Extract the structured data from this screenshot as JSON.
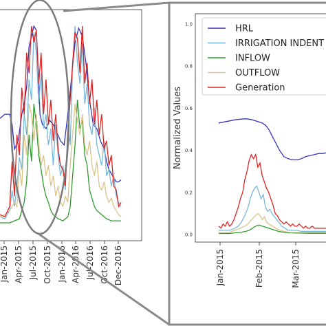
{
  "chart_data": [
    {
      "type": "line",
      "panel": "overview",
      "x_ticks": [
        "Jan-2015",
        "Apr-2015",
        "Jul-2015",
        "Oct-2015",
        "Jan-2016",
        "Apr-2016",
        "Jul-2016",
        "Oct-2016",
        "Dec-2016"
      ],
      "ylim": [
        0,
        1
      ],
      "grid": false,
      "legend": "none",
      "series": [
        {
          "name": "HRL",
          "color": "#3333bb",
          "x": [
            0,
            4,
            8,
            10,
            12,
            15,
            18,
            20,
            22,
            24,
            26,
            28,
            30,
            32,
            33,
            35,
            38,
            41,
            44,
            47,
            50,
            53,
            56,
            59,
            62,
            65,
            68,
            71,
            74,
            77,
            80,
            83,
            86,
            88,
            90,
            92,
            94,
            96,
            98,
            100
          ],
          "values": [
            0.53,
            0.55,
            0.55,
            0.5,
            0.38,
            0.42,
            0.55,
            0.6,
            0.68,
            0.88,
            0.93,
            0.98,
            0.96,
            0.72,
            0.55,
            0.5,
            0.48,
            0.52,
            0.5,
            0.46,
            0.42,
            0.4,
            0.55,
            0.72,
            0.9,
            0.97,
            0.93,
            0.8,
            0.62,
            0.5,
            0.48,
            0.42,
            0.38,
            0.32,
            0.28,
            0.26,
            0.24,
            0.22,
            0.22,
            0.23
          ]
        },
        {
          "name": "IRRIGATION INDENT",
          "color": "#78b8d8",
          "x": [
            0,
            4,
            8,
            10,
            12,
            14,
            16,
            18,
            20,
            22,
            24,
            26,
            28,
            30,
            32,
            34,
            36,
            38,
            40,
            42,
            44,
            46,
            48,
            50,
            52,
            54,
            56,
            58,
            60,
            62,
            64,
            66,
            68,
            70,
            72,
            74,
            76,
            78,
            80,
            82,
            84,
            86,
            88,
            90,
            92,
            94,
            96,
            98,
            100
          ],
          "values": [
            0.05,
            0.04,
            0.08,
            0.18,
            0.1,
            0.2,
            0.34,
            0.28,
            0.55,
            0.45,
            0.72,
            0.62,
            0.95,
            0.85,
            0.6,
            0.75,
            0.48,
            0.55,
            0.4,
            0.48,
            0.3,
            0.5,
            0.35,
            0.25,
            0.3,
            0.18,
            0.5,
            0.4,
            0.78,
            0.98,
            0.8,
            0.7,
            0.9,
            0.6,
            0.7,
            0.5,
            0.45,
            0.58,
            0.4,
            0.35,
            0.3,
            0.42,
            0.25,
            0.28,
            0.2,
            0.25,
            0.15,
            0.12,
            0.1
          ]
        },
        {
          "name": "INFLOW",
          "color": "#2e9a2e",
          "x": [
            0,
            4,
            8,
            12,
            16,
            20,
            22,
            24,
            26,
            28,
            30,
            32,
            34,
            36,
            38,
            40,
            42,
            44,
            48,
            52,
            56,
            58,
            60,
            62,
            64,
            66,
            68,
            70,
            72,
            74,
            76,
            78,
            80,
            84,
            88,
            92,
            96,
            100
          ],
          "values": [
            0.02,
            0.02,
            0.02,
            0.03,
            0.04,
            0.12,
            0.22,
            0.45,
            0.32,
            0.6,
            0.5,
            0.35,
            0.28,
            0.2,
            0.15,
            0.12,
            0.08,
            0.06,
            0.04,
            0.03,
            0.05,
            0.1,
            0.25,
            0.4,
            0.62,
            0.48,
            0.52,
            0.35,
            0.3,
            0.18,
            0.14,
            0.1,
            0.08,
            0.06,
            0.04,
            0.03,
            0.03,
            0.03
          ]
        },
        {
          "name": "OUTFLOW",
          "color": "#d9c48a",
          "x": [
            0,
            4,
            8,
            12,
            14,
            16,
            18,
            20,
            22,
            24,
            26,
            28,
            30,
            32,
            34,
            36,
            38,
            40,
            42,
            44,
            46,
            48,
            50,
            52,
            54,
            56,
            58,
            60,
            62,
            64,
            66,
            68,
            70,
            72,
            74,
            76,
            78,
            80,
            82,
            84,
            86,
            88,
            90,
            92,
            94,
            96,
            98,
            100
          ],
          "values": [
            0.05,
            0.06,
            0.08,
            0.12,
            0.1,
            0.28,
            0.2,
            0.45,
            0.35,
            0.6,
            0.55,
            0.42,
            0.55,
            0.4,
            0.3,
            0.35,
            0.25,
            0.3,
            0.2,
            0.25,
            0.15,
            0.2,
            0.12,
            0.1,
            0.15,
            0.12,
            0.3,
            0.45,
            0.6,
            0.52,
            0.45,
            0.55,
            0.4,
            0.35,
            0.42,
            0.3,
            0.25,
            0.32,
            0.2,
            0.18,
            0.22,
            0.15,
            0.12,
            0.14,
            0.1,
            0.08,
            0.06,
            0.05
          ]
        },
        {
          "name": "Generation",
          "color": "#dd2222",
          "x": [
            0,
            4,
            8,
            10,
            12,
            14,
            16,
            18,
            20,
            22,
            24,
            26,
            28,
            30,
            32,
            34,
            36,
            38,
            40,
            42,
            44,
            46,
            48,
            50,
            52,
            54,
            56,
            58,
            60,
            62,
            64,
            66,
            68,
            70,
            72,
            74,
            76,
            78,
            80,
            82,
            84,
            86,
            88,
            90,
            92,
            94,
            96,
            98,
            100
          ],
          "values": [
            0.06,
            0.05,
            0.1,
            0.32,
            0.15,
            0.45,
            0.35,
            0.68,
            0.55,
            0.85,
            0.75,
            0.98,
            0.9,
            0.96,
            0.7,
            0.85,
            0.55,
            0.72,
            0.5,
            0.62,
            0.42,
            0.55,
            0.38,
            0.3,
            0.28,
            0.2,
            0.45,
            0.62,
            0.8,
            0.95,
            0.92,
            0.75,
            0.98,
            0.7,
            0.8,
            0.6,
            0.72,
            0.5,
            0.62,
            0.45,
            0.55,
            0.38,
            0.42,
            0.3,
            0.35,
            0.2,
            0.18,
            0.1,
            0.12
          ]
        }
      ]
    },
    {
      "type": "line",
      "panel": "zoom",
      "ylabel": "Normalized Values",
      "y_ticks": [
        "0.0",
        "0.2",
        "0.4",
        "0.6",
        "0.8",
        "1.0"
      ],
      "ylim": [
        0,
        1
      ],
      "x_ticks": [
        "Jan-2015",
        "Feb-2015",
        "Mar-2015"
      ],
      "grid": false,
      "legend": "top-left",
      "series": [
        {
          "name": "HRL",
          "color": "#3333bb",
          "x": [
            0,
            5,
            10,
            15,
            20,
            25,
            28,
            31,
            34,
            37,
            40,
            43,
            46,
            49,
            52,
            56,
            60,
            64,
            68,
            72,
            76,
            80,
            84,
            88,
            92,
            96,
            100
          ],
          "values": [
            0.53,
            0.535,
            0.54,
            0.545,
            0.548,
            0.55,
            0.548,
            0.545,
            0.54,
            0.535,
            0.53,
            0.52,
            0.5,
            0.47,
            0.44,
            0.4,
            0.37,
            0.36,
            0.355,
            0.355,
            0.36,
            0.37,
            0.375,
            0.38,
            0.385,
            0.385,
            0.39
          ]
        },
        {
          "name": "IRRIGATION INDENT",
          "color": "#78b8d8",
          "x": [
            0,
            5,
            10,
            15,
            18,
            21,
            24,
            27,
            29,
            31,
            33,
            35,
            37,
            39,
            41,
            43,
            45,
            47,
            49,
            52,
            55,
            58,
            61,
            64,
            68,
            72,
            76,
            80,
            84,
            88,
            92,
            96,
            100
          ],
          "values": [
            0.02,
            0.02,
            0.02,
            0.03,
            0.04,
            0.06,
            0.09,
            0.13,
            0.17,
            0.2,
            0.22,
            0.23,
            0.2,
            0.17,
            0.19,
            0.13,
            0.11,
            0.12,
            0.1,
            0.08,
            0.06,
            0.04,
            0.03,
            0.02,
            0.02,
            0.02,
            0.015,
            0.015,
            0.015,
            0.015,
            0.015,
            0.015,
            0.015
          ]
        },
        {
          "name": "INFLOW",
          "color": "#2e9a2e",
          "x": [
            0,
            5,
            10,
            15,
            20,
            25,
            28,
            31,
            34,
            37,
            40,
            43,
            46,
            49,
            52,
            55,
            58,
            61,
            64,
            68,
            72,
            76,
            80,
            84,
            88,
            92,
            96,
            100
          ],
          "values": [
            0.005,
            0.005,
            0.005,
            0.008,
            0.01,
            0.015,
            0.02,
            0.03,
            0.04,
            0.045,
            0.04,
            0.035,
            0.03,
            0.025,
            0.02,
            0.015,
            0.012,
            0.01,
            0.008,
            0.008,
            0.007,
            0.007,
            0.006,
            0.006,
            0.006,
            0.006,
            0.006,
            0.006
          ]
        },
        {
          "name": "OUTFLOW",
          "color": "#d9c48a",
          "x": [
            0,
            5,
            10,
            15,
            20,
            24,
            27,
            30,
            32,
            34,
            36,
            38,
            40,
            42,
            44,
            46,
            48,
            51,
            54,
            57,
            60,
            63,
            66,
            70,
            74,
            78,
            82,
            86,
            90,
            95,
            100
          ],
          "values": [
            0.01,
            0.01,
            0.01,
            0.02,
            0.03,
            0.04,
            0.05,
            0.07,
            0.08,
            0.09,
            0.1,
            0.09,
            0.07,
            0.085,
            0.06,
            0.05,
            0.045,
            0.035,
            0.025,
            0.02,
            0.015,
            0.012,
            0.01,
            0.01,
            0.01,
            0.01,
            0.01,
            0.01,
            0.01,
            0.01,
            0.01
          ]
        },
        {
          "name": "Generation",
          "color": "#dd2222",
          "x": [
            0,
            2,
            4,
            6,
            8,
            10,
            12,
            14,
            16,
            18,
            20,
            22,
            24,
            26,
            28,
            30,
            32,
            34,
            36,
            38,
            40,
            42,
            44,
            46,
            48,
            50,
            52,
            54,
            56,
            58,
            60,
            62,
            64,
            66,
            68,
            70,
            72,
            74,
            76,
            78,
            80,
            82,
            84,
            86,
            88,
            90,
            92,
            94,
            96,
            98,
            100
          ],
          "values": [
            0.04,
            0.03,
            0.05,
            0.04,
            0.06,
            0.04,
            0.05,
            0.07,
            0.1,
            0.13,
            0.17,
            0.2,
            0.26,
            0.3,
            0.35,
            0.38,
            0.36,
            0.38,
            0.32,
            0.34,
            0.28,
            0.25,
            0.22,
            0.2,
            0.17,
            0.14,
            0.1,
            0.09,
            0.07,
            0.06,
            0.05,
            0.06,
            0.05,
            0.04,
            0.05,
            0.04,
            0.04,
            0.05,
            0.04,
            0.03,
            0.04,
            0.03,
            0.03,
            0.04,
            0.03,
            0.03,
            0.03,
            0.03,
            0.03,
            0.03,
            0.03
          ]
        }
      ]
    }
  ]
}
